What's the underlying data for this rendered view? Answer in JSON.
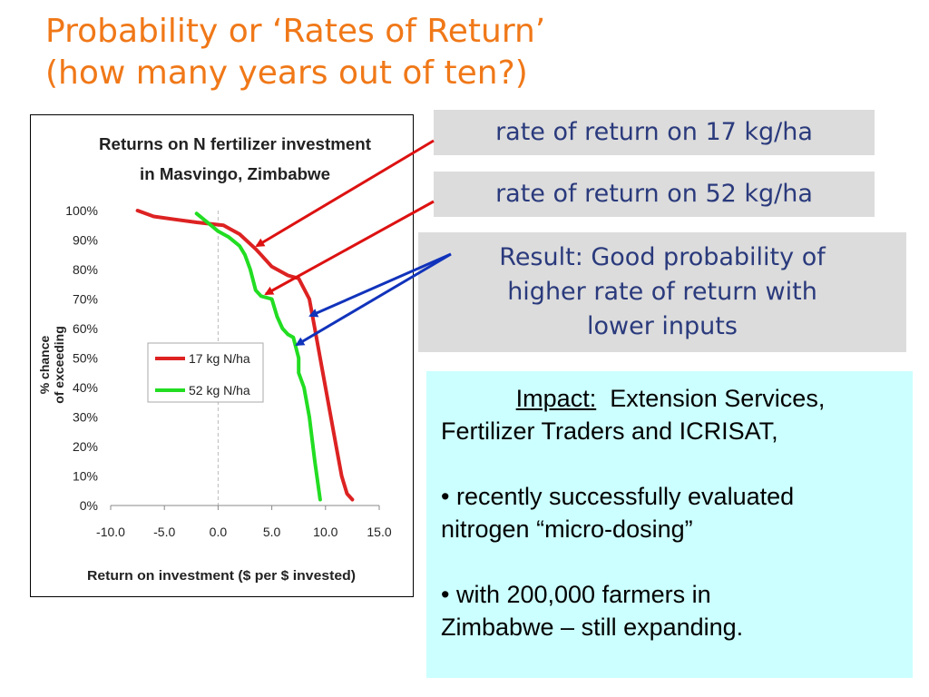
{
  "slide": {
    "title_line1": "Probability or ‘Rates of Return’",
    "title_line2": "(how many years out of ten?)"
  },
  "callouts": {
    "rate17": "rate of return on 17 kg/ha",
    "rate52": "rate of return on 52 kg/ha",
    "result_line1": "Result: Good probability of",
    "result_line2": "higher rate of return with",
    "result_line3": "lower inputs"
  },
  "impact": {
    "label": "Impact:",
    "line1_rest": "Extension Services,",
    "line2": "Fertilizer Traders and ICRISAT,",
    "bullet1_line1": "• recently successfully evaluated",
    "bullet1_line2": "nitrogen “micro-dosing”",
    "bullet2_line1": "• with 200,000 farmers in",
    "bullet2_line2": "Zimbabwe – still expanding."
  },
  "colors": {
    "title": "#f07818",
    "callout_bg": "#dcdcdc",
    "callout_text": "#2a3a7c",
    "impact_bg": "#ccffff",
    "arrow_red": "#dd1111",
    "arrow_blue": "#1133bb"
  },
  "chart_data": {
    "type": "line",
    "title": "Returns on N fertilizer investment",
    "subtitle": "in Masvingo, Zimbabwe",
    "xlabel": "Return on investment ($ per $ invested)",
    "ylabel_line1": "% chance",
    "ylabel_line2": "of exceeding",
    "xlim": [
      -10,
      15
    ],
    "ylim": [
      0,
      100
    ],
    "x_ticks": [
      "-10.0",
      "-5.0",
      "0.0",
      "5.0",
      "10.0",
      "15.0"
    ],
    "x_tick_values": [
      -10,
      -5,
      0,
      5,
      10,
      15
    ],
    "y_ticks": [
      "0%",
      "10%",
      "20%",
      "30%",
      "40%",
      "50%",
      "60%",
      "70%",
      "80%",
      "90%",
      "100%"
    ],
    "y_tick_values": [
      0,
      10,
      20,
      30,
      40,
      50,
      60,
      70,
      80,
      90,
      100
    ],
    "grid": "vertical dashed line at x = 0",
    "legend_position": "center-left",
    "series": [
      {
        "name": "17 kg N/ha",
        "color": "#dd2222",
        "x": [
          -7.5,
          -6,
          -4,
          -2,
          0.5,
          2,
          3.5,
          4,
          5,
          6.5,
          7.5,
          8.5,
          9,
          9.5,
          10,
          10.5,
          11,
          11.5,
          12,
          12.5
        ],
        "y": [
          100,
          98,
          97,
          96,
          95,
          92,
          87,
          85,
          81,
          78,
          77,
          70,
          60,
          50,
          40,
          30,
          20,
          10,
          4,
          2
        ]
      },
      {
        "name": "52 kg N/ha",
        "color": "#22dd22",
        "x": [
          -2,
          -1,
          0,
          1,
          2,
          2.5,
          3,
          3.5,
          4,
          5,
          5.5,
          6,
          6.5,
          7,
          7.5,
          7.5,
          8,
          8.5,
          9,
          9.5
        ],
        "y": [
          99,
          96,
          93,
          91,
          88,
          85,
          80,
          73,
          71,
          70,
          64,
          60,
          58,
          57,
          50,
          45,
          40,
          30,
          15,
          2
        ]
      }
    ]
  }
}
